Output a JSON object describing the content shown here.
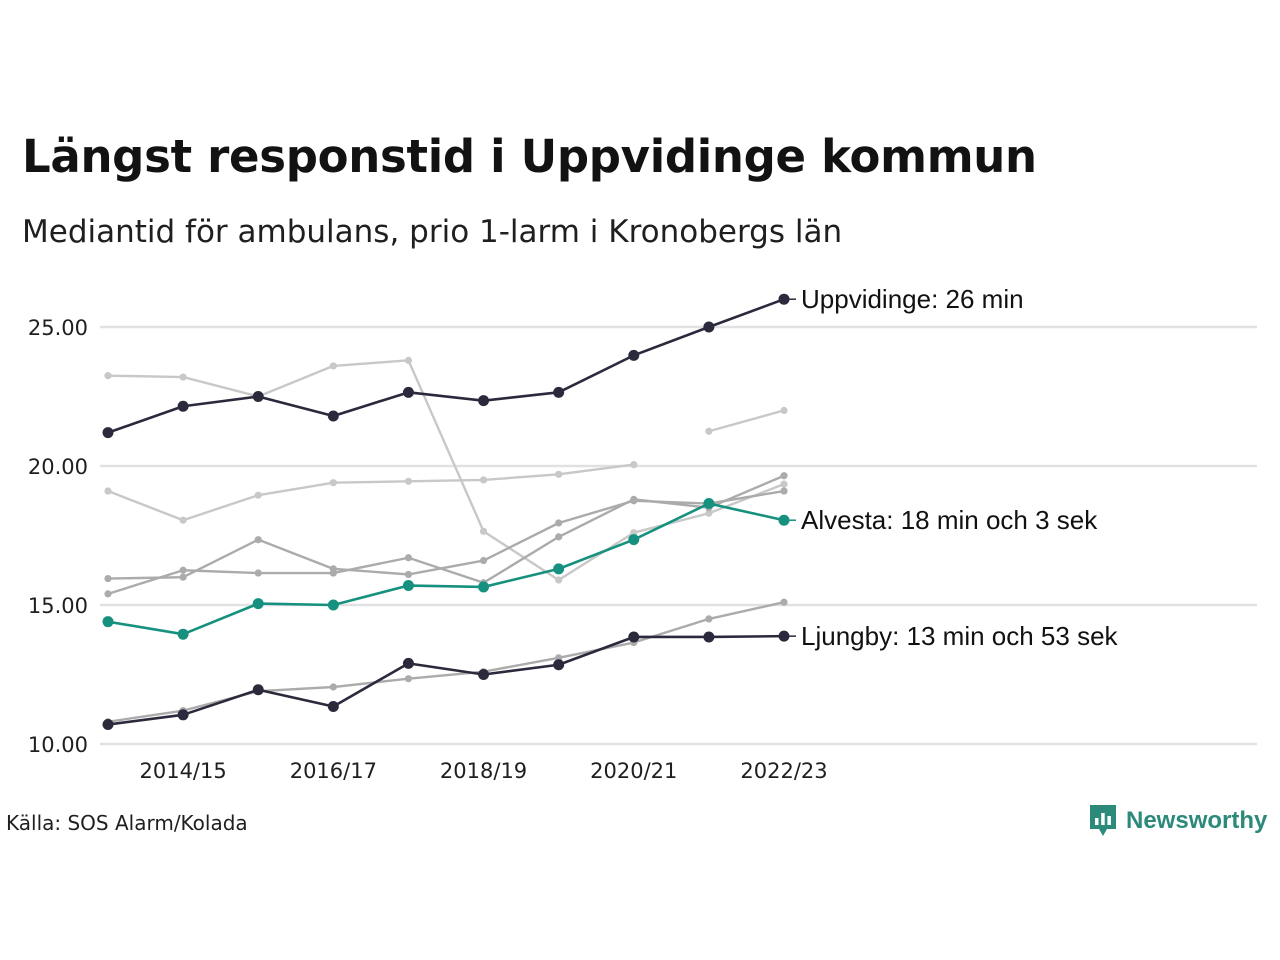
{
  "title": "Längst responstid i Uppvidinge kommun",
  "subtitle": "Mediantid för ambulans, prio 1-larm i Kronobergs län",
  "source": "Källa: SOS Alarm/Kolada",
  "brand": {
    "name": "Newsworthy",
    "icon": "newsworthy-logo-icon",
    "color": "#2c8a7a"
  },
  "chart_data": {
    "type": "line",
    "x": [
      "2013/14",
      "2014/15",
      "2015/16",
      "2016/17",
      "2017/18",
      "2018/19",
      "2019/20",
      "2020/21",
      "2021/22",
      "2022/23"
    ],
    "x_tick_labels": [
      "2014/15",
      "2016/17",
      "2018/19",
      "2020/21",
      "2022/23"
    ],
    "y_ticks": [
      "10.00",
      "15.00",
      "20.00",
      "25.00"
    ],
    "ylim": [
      10,
      26.5
    ],
    "grid": "horizontal",
    "legend": "none",
    "series": [
      {
        "values": [
          23.25,
          23.2,
          22.5,
          23.6,
          23.8,
          17.65,
          15.9,
          17.6,
          18.3,
          19.35
        ],
        "color": "#c8c8c8",
        "highlight": false
      },
      {
        "values": [
          null,
          null,
          null,
          null,
          null,
          null,
          null,
          null,
          21.25,
          22.0
        ],
        "color": "#c8c8c8",
        "highlight": false
      },
      {
        "values": [
          19.1,
          18.05,
          18.95,
          19.4,
          19.45,
          19.5,
          19.7,
          20.05,
          null,
          null
        ],
        "color": "#c8c8c8",
        "highlight": false
      },
      {
        "values": [
          15.95,
          16.0,
          17.35,
          16.3,
          16.1,
          16.6,
          17.95,
          18.75,
          18.65,
          19.1
        ],
        "color": "#ababab",
        "highlight": false
      },
      {
        "values": [
          15.4,
          16.25,
          16.15,
          16.15,
          16.7,
          15.8,
          17.45,
          18.8,
          18.5,
          19.65
        ],
        "color": "#ababab",
        "highlight": false
      },
      {
        "values": [
          10.8,
          11.2,
          11.9,
          12.05,
          12.35,
          12.6,
          13.1,
          13.65,
          14.5,
          15.1
        ],
        "color": "#ababab",
        "highlight": false
      },
      {
        "name": "Uppvidinge",
        "label": "Uppvidinge: 26 min",
        "values": [
          21.2,
          22.15,
          22.5,
          21.8,
          22.65,
          22.35,
          22.65,
          23.98,
          25.0,
          26.0
        ],
        "color": "#2b2a3d",
        "highlight": true
      },
      {
        "name": "Alvesta",
        "label": "Alvesta: 18 min och 3 sek",
        "values": [
          14.4,
          13.95,
          15.05,
          15.0,
          15.7,
          15.65,
          16.3,
          17.35,
          18.65,
          18.05
        ],
        "color": "#17917f",
        "highlight": true
      },
      {
        "name": "Ljungby",
        "label": "Ljungby: 13 min och 53 sek",
        "values": [
          10.7,
          11.05,
          11.95,
          11.35,
          12.9,
          12.5,
          12.85,
          13.85,
          13.85,
          13.88
        ],
        "color": "#2b2a3d",
        "highlight": true
      }
    ]
  }
}
